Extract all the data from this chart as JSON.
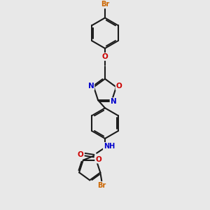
{
  "bg_color": "#e8e8e8",
  "bond_color": "#1a1a1a",
  "atom_colors": {
    "Br": "#cc6600",
    "O": "#cc0000",
    "N": "#0000cc",
    "H": "#333333",
    "C": "#1a1a1a"
  },
  "figsize": [
    3.0,
    3.0
  ],
  "dpi": 100
}
